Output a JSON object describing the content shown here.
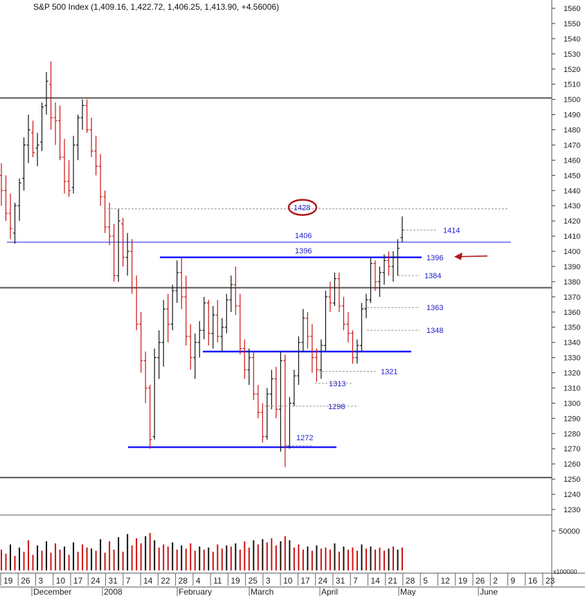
{
  "header": {
    "title": "S&P 500 Index (1,409.16, 1,422.72, 1,406.25, 1,413.90, +4.56006)"
  },
  "colors": {
    "up": "#111111",
    "down": "#cc1111",
    "support_line": "#1a1aff",
    "level_label": "#2020cc",
    "frame": "#555555",
    "arrow": "#b01818"
  },
  "chart_data": {
    "type": "ohlc",
    "title": "S&P 500 Index (1,409.16, 1,422.72, 1,406.25, 1,413.90, +4.56006)",
    "y_ticks": [
      1230,
      1240,
      1250,
      1260,
      1270,
      1280,
      1290,
      1300,
      1310,
      1320,
      1330,
      1340,
      1350,
      1360,
      1370,
      1380,
      1390,
      1400,
      1410,
      1420,
      1430,
      1440,
      1450,
      1460,
      1470,
      1480,
      1490,
      1500,
      1510,
      1520,
      1530,
      1540,
      1550,
      1560
    ],
    "ylim": [
      1224,
      1565
    ],
    "date_ticks": [
      "19",
      "26",
      "3",
      "10",
      "17",
      "24",
      "31",
      "7",
      "14",
      "22",
      "28",
      "4",
      "11",
      "19",
      "25",
      "3",
      "10",
      "17",
      "24",
      "31",
      "7",
      "14",
      "21",
      "28",
      "5",
      "12",
      "19",
      "26",
      "2",
      "9",
      "16",
      "23"
    ],
    "months": [
      "December",
      "2008",
      "February",
      "March",
      "April",
      "May",
      "June"
    ],
    "price_bars": [
      [
        1450,
        1458,
        1430,
        1440
      ],
      [
        1440,
        1450,
        1420,
        1425
      ],
      [
        1425,
        1438,
        1408,
        1415
      ],
      [
        1412,
        1432,
        1405,
        1430
      ],
      [
        1430,
        1448,
        1420,
        1445
      ],
      [
        1448,
        1475,
        1440,
        1470
      ],
      [
        1470,
        1490,
        1458,
        1480
      ],
      [
        1478,
        1486,
        1462,
        1465
      ],
      [
        1468,
        1478,
        1456,
        1470
      ],
      [
        1472,
        1498,
        1466,
        1495
      ],
      [
        1496,
        1518,
        1490,
        1512
      ],
      [
        1510,
        1525,
        1480,
        1488
      ],
      [
        1488,
        1498,
        1470,
        1486
      ],
      [
        1486,
        1496,
        1460,
        1462
      ],
      [
        1462,
        1474,
        1438,
        1446
      ],
      [
        1446,
        1460,
        1436,
        1440
      ],
      [
        1442,
        1476,
        1438,
        1470
      ],
      [
        1470,
        1490,
        1460,
        1488
      ],
      [
        1488,
        1500,
        1480,
        1496
      ],
      [
        1496,
        1500,
        1478,
        1480
      ],
      [
        1480,
        1488,
        1462,
        1466
      ],
      [
        1466,
        1476,
        1450,
        1456
      ],
      [
        1456,
        1464,
        1430,
        1436
      ],
      [
        1436,
        1440,
        1412,
        1416
      ],
      [
        1416,
        1432,
        1404,
        1410
      ],
      [
        1410,
        1418,
        1380,
        1384
      ],
      [
        1384,
        1428,
        1380,
        1420
      ],
      [
        1418,
        1422,
        1390,
        1396
      ],
      [
        1396,
        1412,
        1384,
        1400
      ],
      [
        1400,
        1408,
        1372,
        1376
      ],
      [
        1376,
        1384,
        1348,
        1352
      ],
      [
        1352,
        1360,
        1320,
        1328
      ],
      [
        1328,
        1334,
        1300,
        1310
      ],
      [
        1310,
        1312,
        1270,
        1276
      ],
      [
        1278,
        1336,
        1276,
        1330
      ],
      [
        1330,
        1348,
        1316,
        1340
      ],
      [
        1340,
        1368,
        1324,
        1362
      ],
      [
        1362,
        1372,
        1340,
        1352
      ],
      [
        1352,
        1378,
        1348,
        1374
      ],
      [
        1374,
        1394,
        1366,
        1386
      ],
      [
        1386,
        1396,
        1362,
        1370
      ],
      [
        1370,
        1384,
        1338,
        1344
      ],
      [
        1344,
        1352,
        1322,
        1330
      ],
      [
        1330,
        1346,
        1316,
        1340
      ],
      [
        1340,
        1354,
        1330,
        1348
      ],
      [
        1348,
        1370,
        1342,
        1366
      ],
      [
        1366,
        1368,
        1338,
        1346
      ],
      [
        1346,
        1364,
        1336,
        1358
      ],
      [
        1358,
        1368,
        1340,
        1344
      ],
      [
        1344,
        1356,
        1334,
        1350
      ],
      [
        1350,
        1372,
        1346,
        1368
      ],
      [
        1368,
        1384,
        1360,
        1378
      ],
      [
        1378,
        1390,
        1358,
        1364
      ],
      [
        1364,
        1372,
        1332,
        1336
      ],
      [
        1336,
        1342,
        1316,
        1322
      ],
      [
        1322,
        1336,
        1312,
        1330
      ],
      [
        1330,
        1334,
        1302,
        1306
      ],
      [
        1306,
        1312,
        1290,
        1294
      ],
      [
        1294,
        1300,
        1274,
        1278
      ],
      [
        1278,
        1310,
        1276,
        1306
      ],
      [
        1306,
        1322,
        1296,
        1316
      ],
      [
        1316,
        1324,
        1290,
        1296
      ],
      [
        1296,
        1334,
        1268,
        1328
      ],
      [
        1328,
        1332,
        1258,
        1272
      ],
      [
        1272,
        1304,
        1270,
        1300
      ],
      [
        1300,
        1322,
        1298,
        1318
      ],
      [
        1318,
        1344,
        1312,
        1340
      ],
      [
        1340,
        1362,
        1334,
        1356
      ],
      [
        1356,
        1360,
        1336,
        1344
      ],
      [
        1344,
        1352,
        1320,
        1330
      ],
      [
        1330,
        1336,
        1314,
        1322
      ],
      [
        1322,
        1342,
        1316,
        1338
      ],
      [
        1338,
        1374,
        1334,
        1370
      ],
      [
        1370,
        1380,
        1360,
        1366
      ],
      [
        1366,
        1386,
        1364,
        1382
      ],
      [
        1382,
        1386,
        1360,
        1364
      ],
      [
        1364,
        1370,
        1348,
        1352
      ],
      [
        1352,
        1360,
        1340,
        1346
      ],
      [
        1346,
        1348,
        1326,
        1330
      ],
      [
        1330,
        1342,
        1326,
        1338
      ],
      [
        1338,
        1366,
        1334,
        1362
      ],
      [
        1362,
        1372,
        1356,
        1368
      ],
      [
        1368,
        1396,
        1366,
        1392
      ],
      [
        1392,
        1394,
        1374,
        1380
      ],
      [
        1380,
        1390,
        1370,
        1386
      ],
      [
        1386,
        1398,
        1378,
        1394
      ],
      [
        1394,
        1400,
        1384,
        1390
      ],
      [
        1390,
        1400,
        1380,
        1396
      ],
      [
        1396,
        1408,
        1384,
        1402
      ],
      [
        1409,
        1423,
        1406,
        1414
      ]
    ],
    "volume_values": [
      40,
      32,
      50,
      28,
      44,
      36,
      58,
      30,
      48,
      38,
      56,
      34,
      52,
      40,
      46,
      30,
      54,
      36,
      50,
      44,
      42,
      38,
      60,
      34,
      56,
      40,
      64,
      36,
      70,
      48,
      62,
      52,
      66,
      72,
      58,
      44,
      50,
      46,
      54,
      40,
      48,
      42,
      52,
      38,
      46,
      40,
      44,
      36,
      50,
      42,
      48,
      46,
      52,
      40,
      56,
      44,
      58,
      50,
      60,
      54,
      62,
      48,
      56,
      66,
      58,
      44,
      50,
      40,
      46,
      38,
      48,
      42,
      44,
      40,
      52,
      36,
      46,
      40,
      44,
      38,
      50,
      42,
      46,
      40,
      44,
      38,
      42,
      46,
      40,
      44
    ],
    "volume_tick": "50000",
    "volume_unit": "x100000",
    "horizontal_levels": [
      {
        "value": 1501,
        "style": "frame"
      },
      {
        "value": 1376,
        "style": "frame"
      },
      {
        "value": 1251,
        "style": "frame"
      },
      {
        "value": 1406,
        "style": "support_thin"
      },
      {
        "value": 1396,
        "style": "support_thick"
      },
      {
        "value": 1334,
        "style": "support_thick"
      },
      {
        "value": 1271,
        "style": "support_thick"
      }
    ],
    "level_labels": [
      {
        "text": "1428",
        "value": 1428,
        "circled": true
      },
      {
        "text": "1406",
        "value": 1406
      },
      {
        "text": "1396",
        "value": 1396
      },
      {
        "text": "1414",
        "value": 1414
      },
      {
        "text": "1396",
        "value": 1396,
        "side": "right"
      },
      {
        "text": "1384",
        "value": 1384
      },
      {
        "text": "1363",
        "value": 1363
      },
      {
        "text": "1348",
        "value": 1348
      },
      {
        "text": "1321",
        "value": 1321
      },
      {
        "text": "1313",
        "value": 1313
      },
      {
        "text": "1298",
        "value": 1298
      },
      {
        "text": "1272",
        "value": 1272
      }
    ],
    "annotations": [
      {
        "type": "arrow",
        "points_to": "1396"
      }
    ]
  }
}
